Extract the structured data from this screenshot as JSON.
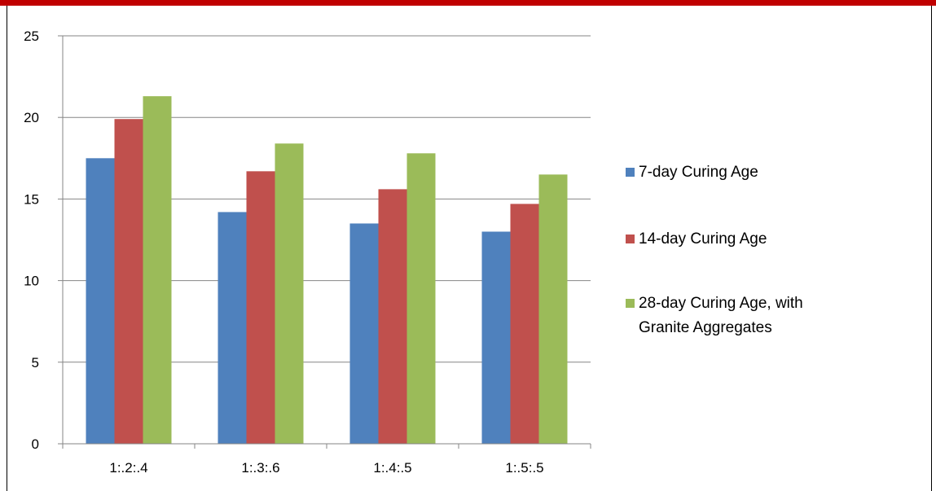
{
  "chart_data": {
    "type": "bar",
    "categories": [
      "1:.2:.4",
      "1:.3:.6",
      "1:.4:.5",
      "1:.5:.5"
    ],
    "series": [
      {
        "name": "7-day Curing Age",
        "values": [
          17.5,
          14.2,
          13.5,
          13.0
        ]
      },
      {
        "name": "14-day Curing Age",
        "values": [
          19.9,
          16.7,
          15.6,
          14.7
        ]
      },
      {
        "name": "28-day Curing Age, with Granite Aggregates",
        "values": [
          21.3,
          18.4,
          17.8,
          16.5
        ]
      }
    ],
    "title": "",
    "xlabel": "",
    "ylabel": "",
    "ylim": [
      0,
      25
    ],
    "yticks": [
      0,
      5,
      10,
      15,
      20,
      25
    ],
    "grid": true,
    "legend_position": "right"
  },
  "colors": {
    "series": [
      "#4f81bd",
      "#c0504d",
      "#9bbb59"
    ],
    "frame_accent": "#c00000",
    "gridline": "#868686"
  }
}
